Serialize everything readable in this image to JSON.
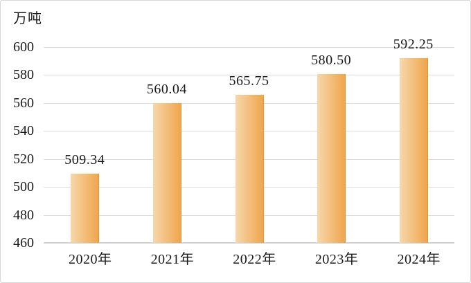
{
  "colors": {
    "background": "#ffffff",
    "frame_border": "#d6d6d6",
    "gridline": "#dcdcdc",
    "axis_line": "#d2d2d2",
    "text": "#1a1a1a",
    "bar_gradient_start": "#f6d7ab",
    "bar_gradient_end": "#efa64c",
    "bar_edge": "#e3953f"
  },
  "chart_data": {
    "type": "bar",
    "title": "",
    "ylabel": "万吨",
    "xlabel": "",
    "categories": [
      "2020年",
      "2021年",
      "2022年",
      "2023年",
      "2024年"
    ],
    "values": [
      509.34,
      560.04,
      565.75,
      580.5,
      592.25
    ],
    "value_labels": [
      "509.34",
      "560.04",
      "565.75",
      "580.50",
      "592.25"
    ],
    "ylim": [
      460,
      600
    ],
    "yticks": [
      460,
      480,
      500,
      520,
      540,
      560,
      580,
      600
    ],
    "grid": "horizontal",
    "legend_position": "none"
  }
}
